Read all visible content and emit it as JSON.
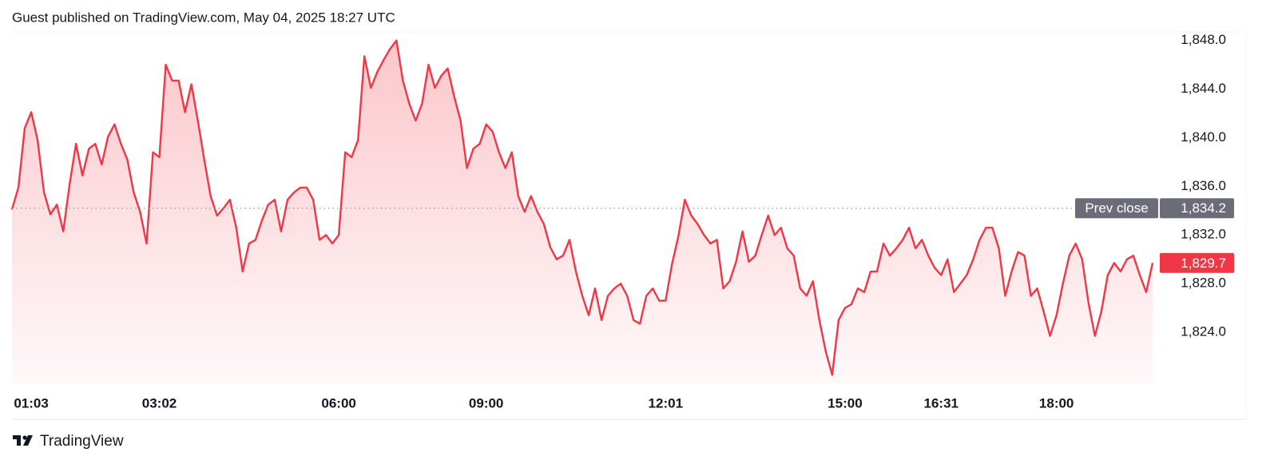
{
  "header": "Guest published on TradingView.com, May 04, 2025 18:27 UTC",
  "footer": "TradingView",
  "chart_data": {
    "type": "area",
    "series": [
      {
        "color": "#f23645",
        "values": [
          1834.1,
          1835.9,
          1840.8,
          1842.1,
          1839.8,
          1835.5,
          1833.7,
          1834.5,
          1832.3,
          1836.2,
          1839.5,
          1836.9,
          1839.1,
          1839.5,
          1837.8,
          1840.1,
          1841.1,
          1839.5,
          1838.2,
          1835.5,
          1833.9,
          1831.3,
          1838.8,
          1838.4,
          1846.0,
          1844.7,
          1844.7,
          1842.1,
          1844.4,
          1841.4,
          1838.2,
          1835.2,
          1833.6,
          1834.2,
          1834.9,
          1832.6,
          1829.0,
          1831.3,
          1831.6,
          1833.2,
          1834.5,
          1834.9,
          1832.3,
          1834.9,
          1835.5,
          1835.9,
          1835.9,
          1834.9,
          1831.6,
          1832.0,
          1831.3,
          1832.0,
          1838.8,
          1838.4,
          1839.8,
          1846.7,
          1844.1,
          1845.4,
          1846.4,
          1847.3,
          1848.0,
          1844.7,
          1842.8,
          1841.4,
          1842.8,
          1846.0,
          1844.1,
          1845.1,
          1845.7,
          1843.4,
          1841.4,
          1837.5,
          1839.1,
          1839.5,
          1841.1,
          1840.5,
          1838.8,
          1837.5,
          1838.8,
          1835.2,
          1833.9,
          1835.2,
          1833.9,
          1832.9,
          1831.0,
          1830.0,
          1830.3,
          1831.6,
          1829.0,
          1827.0,
          1825.4,
          1827.6,
          1825.0,
          1827.0,
          1827.6,
          1828.0,
          1827.0,
          1825.0,
          1824.7,
          1827.0,
          1827.6,
          1826.6,
          1826.6,
          1829.6,
          1831.9,
          1834.9,
          1833.6,
          1832.9,
          1832.0,
          1831.3,
          1831.6,
          1827.6,
          1828.2,
          1829.8,
          1832.3,
          1829.8,
          1830.3,
          1832.0,
          1833.6,
          1832.0,
          1832.6,
          1830.9,
          1830.3,
          1827.6,
          1827.0,
          1828.2,
          1825.0,
          1822.4,
          1820.5,
          1825.0,
          1826.0,
          1826.3,
          1827.6,
          1827.3,
          1829.0,
          1829.0,
          1831.3,
          1830.3,
          1830.9,
          1831.6,
          1832.6,
          1830.9,
          1831.6,
          1830.3,
          1829.3,
          1828.7,
          1830.0,
          1827.3,
          1828.0,
          1828.7,
          1830.0,
          1831.6,
          1832.6,
          1832.6,
          1830.9,
          1827.0,
          1829.0,
          1830.6,
          1830.3,
          1827.0,
          1827.6,
          1825.7,
          1823.7,
          1825.4,
          1828.0,
          1830.3,
          1831.3,
          1830.0,
          1826.4,
          1823.7,
          1825.7,
          1828.7,
          1829.7,
          1829.0,
          1830.0,
          1830.3,
          1828.7,
          1827.3,
          1829.7
        ]
      }
    ],
    "xlim": [
      0,
      178
    ],
    "xticks": [
      {
        "value": 3,
        "label": "01:03"
      },
      {
        "value": 23,
        "label": "03:02"
      },
      {
        "value": 51,
        "label": "06:00"
      },
      {
        "value": 74,
        "label": "09:00"
      },
      {
        "value": 102,
        "label": "12:01"
      },
      {
        "value": 130,
        "label": "15:00"
      },
      {
        "value": 145,
        "label": "16:31"
      },
      {
        "value": 163,
        "label": "18:00"
      }
    ],
    "ylim": [
      1819.8,
      1848.7
    ],
    "yticks": [
      {
        "value": 1824,
        "label": "1,824.0"
      },
      {
        "value": 1828,
        "label": "1,828.0"
      },
      {
        "value": 1832,
        "label": "1,832.0"
      },
      {
        "value": 1836,
        "label": "1,836.0"
      },
      {
        "value": 1840,
        "label": "1,840.0"
      },
      {
        "value": 1844,
        "label": "1,844.0"
      },
      {
        "value": 1848,
        "label": "1,848.0"
      }
    ],
    "prev_close": {
      "name": "Prev close",
      "value": 1834.2,
      "label": "1,834.2"
    },
    "last_price": {
      "value": 1829.7,
      "label": "1,829.7"
    }
  }
}
